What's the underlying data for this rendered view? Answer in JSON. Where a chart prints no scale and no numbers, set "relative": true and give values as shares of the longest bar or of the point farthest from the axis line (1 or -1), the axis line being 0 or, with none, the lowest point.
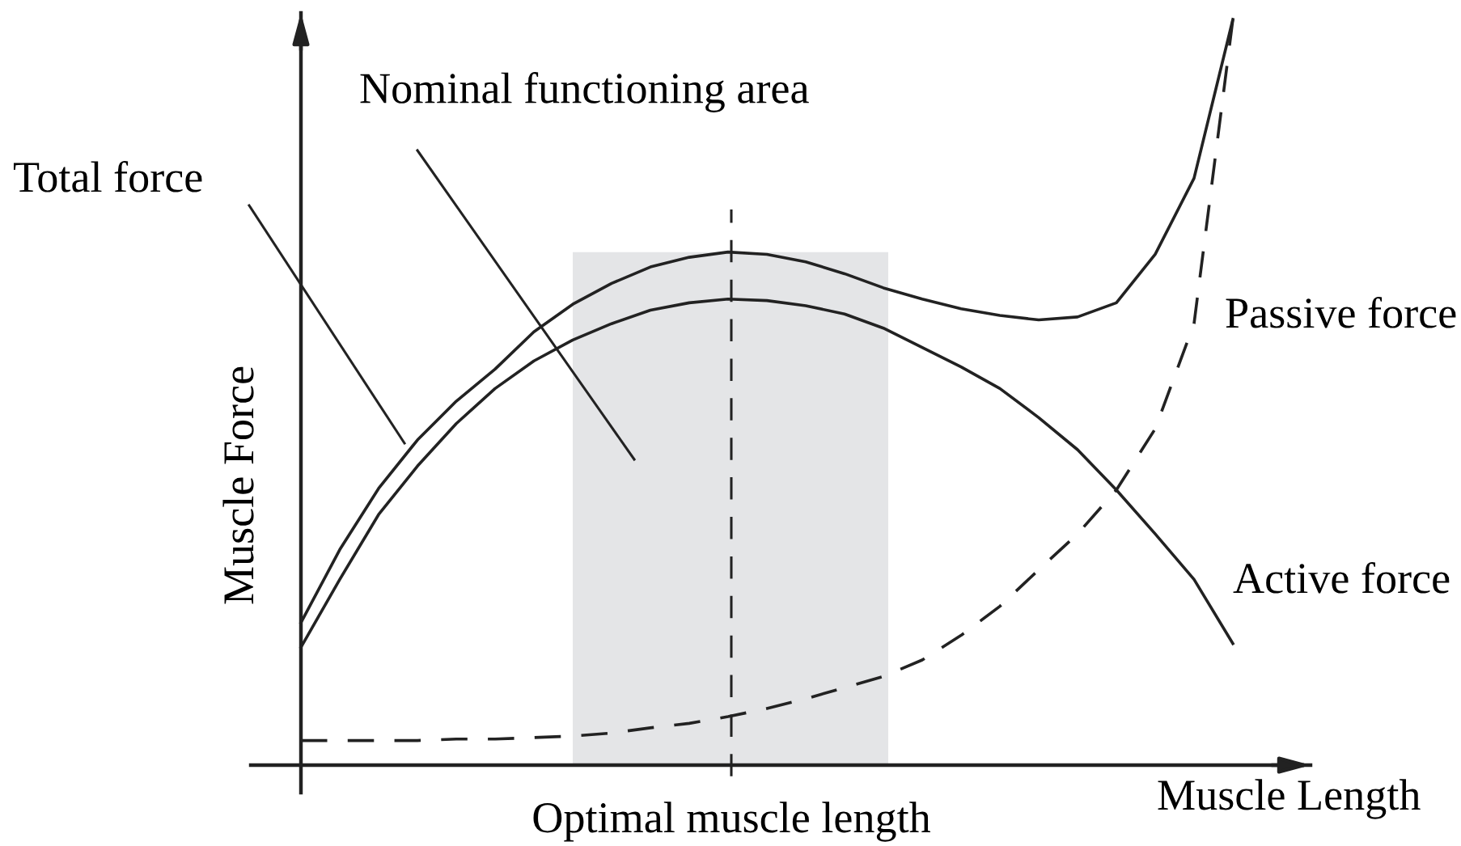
{
  "chart_data": {
    "type": "line",
    "relative": true,
    "xlabel": "Muscle Length",
    "ylabel": "Muscle Force",
    "legend": false,
    "grid": false,
    "marker": "none",
    "line_style": "solid",
    "categories": [
      null,
      null,
      null,
      null,
      null,
      null,
      null,
      null,
      null,
      null,
      null,
      null,
      null,
      null,
      null,
      null,
      null,
      null,
      null,
      null,
      null,
      null,
      null,
      null,
      null
    ],
    "series": [
      {
        "name": "Total force",
        "color": "#222222",
        "values": [
          0.191,
          0.289,
          0.371,
          0.436,
          0.488,
          0.531,
          0.581,
          0.618,
          0.646,
          0.668,
          0.681,
          0.688,
          0.685,
          0.675,
          0.659,
          0.64,
          0.625,
          0.612,
          0.603,
          0.597,
          0.601,
          0.62,
          0.685,
          0.787,
          1
        ]
      },
      {
        "name": "Active force",
        "color": "#222222",
        "values": [
          0.158,
          0.249,
          0.336,
          0.401,
          0.458,
          0.505,
          0.542,
          0.57,
          0.592,
          0.61,
          0.62,
          0.625,
          0.623,
          0.616,
          0.605,
          0.586,
          0.56,
          0.534,
          0.505,
          0.466,
          0.423,
          0.369,
          0.31,
          0.249,
          0.163
        ]
      },
      {
        "name": "Passive force",
        "color": "#222222",
        "line_style": "dashed",
        "values": [
          0.033,
          0.033,
          0.033,
          0.033,
          0.035,
          0.035,
          0.037,
          0.039,
          0.043,
          0.05,
          0.056,
          0.065,
          0.076,
          0.089,
          0.104,
          0.119,
          0.141,
          0.174,
          0.213,
          0.262,
          0.31,
          0.369,
          0.451,
          0.592,
          1
        ]
      }
    ],
    "annotations": [
      "Nominal functioning area",
      "Optimal muscle length"
    ]
  }
}
